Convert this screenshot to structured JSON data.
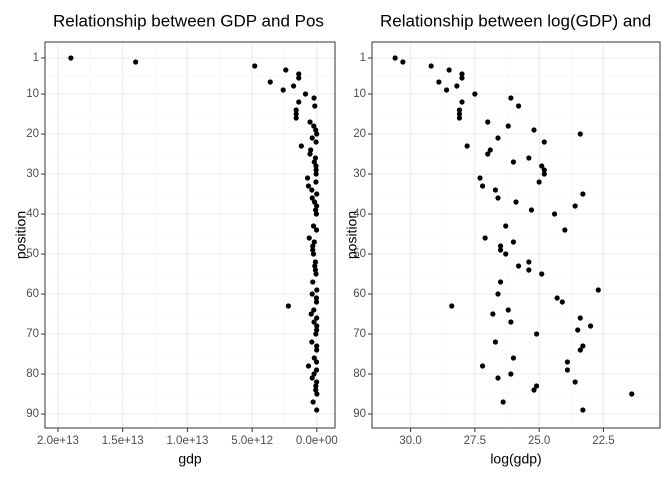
{
  "chart_data": [
    {
      "type": "scatter",
      "title": "Relationship between GDP and Pos",
      "x_label": "gdp",
      "y_label": "position",
      "color": "#000000",
      "grid": true,
      "xlim": [
        21000000000000.0,
        -1400000000000.0
      ],
      "ylim": [
        93.5,
        -3
      ],
      "xticks": [
        {
          "value": 20000000000000.0,
          "label": "2.0e+13"
        },
        {
          "value": 15000000000000.0,
          "label": "1.5e+13"
        },
        {
          "value": 10000000000000.0,
          "label": "1.0e+13"
        },
        {
          "value": 5000000000000.0,
          "label": "5.0e+12"
        },
        {
          "value": 0,
          "label": "0.0e+00"
        }
      ],
      "yticks": [
        1,
        10,
        20,
        30,
        40,
        50,
        60,
        70,
        80,
        90
      ],
      "y": [
        1,
        2,
        3,
        4,
        5,
        6,
        7,
        8,
        9,
        10,
        11,
        12,
        13,
        14,
        15,
        16,
        17,
        18,
        19,
        20,
        21,
        22,
        23,
        24,
        25,
        26,
        27,
        28,
        29,
        30,
        31,
        32,
        33,
        34,
        35,
        36,
        37,
        38,
        39,
        40,
        43,
        44,
        46,
        47,
        48,
        49,
        50,
        52,
        53,
        54,
        55,
        57,
        59,
        60,
        61,
        62,
        63,
        64,
        65,
        66,
        67,
        68,
        69,
        70,
        72,
        73,
        74,
        76,
        77,
        78,
        79,
        80,
        81,
        82,
        83,
        84,
        85,
        87,
        89
      ],
      "x": [
        19000000000000.0,
        14000000000000.0,
        4800000000000.0,
        2400000000000.0,
        1400000000000.0,
        1400000000000.0,
        3600000000000.0,
        1800000000000.0,
        2600000000000.0,
        880000000000.0,
        220000000000.0,
        1400000000000.0,
        160000000000.0,
        1600000000000.0,
        1600000000000.0,
        1600000000000.0,
        530000000000.0,
        240000000000.0,
        88000000000.0,
        15000000000.0,
        360000000000.0,
        59000000000.0,
        1200000000000.0,
        480000000000.0,
        530000000000.0,
        110000000000.0,
        200000000000.0,
        65000000000.0,
        59000000000.0,
        59000000000.0,
        720000000000.0,
        72000000000.0,
        650000000000.0,
        390000000000.0,
        13000000000.0,
        360000000000.0,
        180000000000.0,
        18000000000.0,
        97000000000.0,
        40000000000.0,
        260000000000.0,
        26000000000.0,
        590000000000.0,
        200000000000.0,
        320000000000.0,
        320000000000.0,
        260000000000.0,
        110000000000.0,
        160000000000.0,
        110000000000.0,
        65000000000.0,
        320000000000.0,
        7200000000.0,
        360000000000.0,
        36000000000.0,
        29000000000.0,
        2200000000000.0,
        240000000000.0,
        440000000000.0,
        15000000000.0,
        220000000000.0,
        9700000000.0,
        16000000000.0,
        80000000000.0,
        390000000000.0,
        13000000000.0,
        15000000000.0,
        200000000000.0,
        24000000000.0,
        650000000000.0,
        24000000000.0,
        220000000000.0,
        360000000000.0,
        18000000000.0,
        80000000000.0,
        88000000000.0,
        2000000000.0,
        290000000000.0,
        13000000000.0
      ]
    },
    {
      "type": "scatter",
      "title": "Relationship between log(GDP) and",
      "x_label": "log(gdp)",
      "y_label": "position",
      "color": "#000000",
      "grid": true,
      "xlim": [
        31.5,
        20.3
      ],
      "ylim": [
        93.5,
        -3
      ],
      "xticks": [
        {
          "value": 30,
          "label": "30.0"
        },
        {
          "value": 27.5,
          "label": "27.5"
        },
        {
          "value": 25,
          "label": "25.0"
        },
        {
          "value": 22.5,
          "label": "22.5"
        }
      ],
      "yticks": [
        1,
        10,
        20,
        30,
        40,
        50,
        60,
        70,
        80,
        90
      ],
      "y": [
        1,
        2,
        3,
        4,
        5,
        6,
        7,
        8,
        9,
        10,
        11,
        12,
        13,
        14,
        15,
        16,
        17,
        18,
        19,
        20,
        21,
        22,
        23,
        24,
        25,
        26,
        27,
        28,
        29,
        30,
        31,
        32,
        33,
        34,
        35,
        36,
        37,
        38,
        39,
        40,
        43,
        44,
        46,
        47,
        48,
        49,
        50,
        52,
        53,
        54,
        55,
        57,
        59,
        60,
        61,
        62,
        63,
        64,
        65,
        66,
        67,
        68,
        69,
        70,
        72,
        73,
        74,
        76,
        77,
        78,
        79,
        80,
        81,
        82,
        83,
        84,
        85,
        87,
        89
      ],
      "x": [
        30.6,
        30.3,
        29.2,
        28.5,
        28.0,
        28.0,
        28.9,
        28.2,
        28.6,
        27.5,
        26.1,
        28.0,
        25.8,
        28.1,
        28.1,
        28.1,
        27.0,
        26.2,
        25.2,
        23.4,
        26.6,
        24.8,
        27.8,
        26.9,
        27.0,
        25.4,
        26.0,
        24.9,
        24.8,
        24.8,
        27.3,
        25.0,
        27.2,
        26.7,
        23.3,
        26.6,
        25.9,
        23.6,
        25.3,
        24.4,
        26.3,
        24.0,
        27.1,
        26.0,
        26.5,
        26.5,
        26.3,
        25.4,
        25.8,
        25.4,
        24.9,
        26.5,
        22.7,
        26.6,
        24.3,
        24.1,
        28.4,
        26.2,
        26.8,
        23.4,
        26.1,
        23.0,
        23.5,
        25.1,
        26.7,
        23.3,
        23.4,
        26.0,
        23.9,
        27.2,
        23.9,
        26.1,
        26.6,
        23.6,
        25.1,
        25.2,
        21.4,
        26.4,
        23.3
      ]
    }
  ]
}
